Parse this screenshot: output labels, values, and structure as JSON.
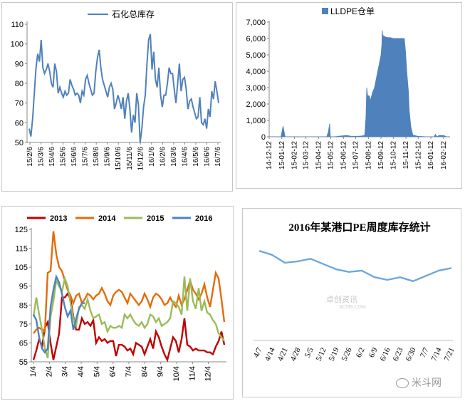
{
  "colors": {
    "series_blue": "#4f81bd",
    "line2013": "#c00000",
    "line2014": "#e46c0a",
    "line2015": "#9bbb59",
    "line2016": "#4f81bd",
    "line2016_port": "#6fa8dc"
  },
  "watermark": {
    "main": "卓创资讯",
    "sub": "SCI99.COM"
  },
  "footer_logo": "米斗网",
  "chart_data": [
    {
      "type": "line",
      "legend": [
        "石化总库存"
      ],
      "series": [
        {
          "name": "石化总库存",
          "values": [
            57,
            53,
            62,
            75,
            88,
            95,
            91,
            102,
            88,
            85,
            87,
            90,
            86,
            80,
            78,
            90,
            86,
            75,
            78,
            75,
            73,
            76,
            74,
            75,
            82,
            79,
            77,
            74,
            75,
            74,
            70,
            76,
            74,
            82,
            84,
            80,
            77,
            74,
            75,
            86,
            93,
            97,
            88,
            82,
            79,
            76,
            73,
            78,
            80,
            77,
            67,
            70,
            74,
            71,
            67,
            73,
            62,
            71,
            75,
            67,
            55,
            64,
            60,
            75,
            69,
            50,
            57,
            68,
            74,
            90,
            102,
            105,
            87,
            96,
            82,
            78,
            88,
            74,
            68,
            74,
            74,
            80,
            88,
            85,
            85,
            77,
            70,
            80,
            90,
            76,
            82,
            83,
            77,
            67,
            71,
            72,
            68,
            65,
            62,
            63,
            73,
            60,
            59,
            62,
            57,
            67,
            63,
            76,
            72,
            81,
            76,
            70
          ]
        }
      ],
      "x_tick_labels": [
        "15/2/6",
        "15/3/6",
        "15/4/6",
        "15/5/6",
        "15/6/6",
        "15/7/6",
        "15/8/6",
        "15/9/6",
        "15/10/6",
        "15/11/6",
        "15/12/6",
        "16/1/6",
        "16/2/6",
        "16/3/6",
        "16/4/6",
        "16/5/6",
        "16/6/6",
        "16/7/6"
      ],
      "y_ticks": [
        50,
        60,
        70,
        80,
        90,
        100,
        110
      ],
      "ylim": [
        50,
        110
      ],
      "grid": false
    },
    {
      "type": "area",
      "legend": [
        "LLDPE仓单"
      ],
      "series": [
        {
          "name": "LLDPE仓单",
          "x": [
            "2014-12-12",
            "2015-01-05",
            "2015-01-10",
            "2015-01-15",
            "2015-01-20",
            "2015-02-01",
            "2015-03-01",
            "2015-04-01",
            "2015-04-25",
            "2015-05-02",
            "2015-05-06",
            "2015-05-09",
            "2015-05-11",
            "2015-05-13",
            "2015-05-16",
            "2015-05-20",
            "2015-06-01",
            "2015-06-20",
            "2015-07-01",
            "2015-07-20",
            "2015-07-28",
            "2015-08-03",
            "2015-08-06",
            "2015-08-08",
            "2015-08-10",
            "2015-08-14",
            "2015-08-17",
            "2015-08-22",
            "2015-08-27",
            "2015-08-31",
            "2015-09-04",
            "2015-09-08",
            "2015-09-12",
            "2015-09-14",
            "2015-09-15",
            "2015-09-16",
            "2015-09-22",
            "2015-09-29",
            "2015-10-05",
            "2015-10-12",
            "2015-10-20",
            "2015-10-26",
            "2015-11-02",
            "2015-11-08",
            "2015-11-11",
            "2015-11-14",
            "2015-11-18",
            "2015-11-20",
            "2015-11-24",
            "2015-11-29",
            "2015-12-03",
            "2015-12-10",
            "2016-01-01",
            "2016-01-20",
            "2016-01-23",
            "2016-01-27",
            "2016-02-01",
            "2016-02-12",
            "2016-02-20",
            "2016-02-28"
          ],
          "values": [
            0,
            0,
            0,
            650,
            0,
            0,
            0,
            0,
            0,
            0,
            300,
            800,
            0,
            0,
            0,
            0,
            40,
            80,
            30,
            40,
            50,
            100,
            1200,
            3000,
            2500,
            2500,
            2200,
            2700,
            3000,
            3500,
            4000,
            4500,
            5000,
            5600,
            6500,
            6200,
            6100,
            6050,
            6050,
            6000,
            6000,
            6000,
            6000,
            6000,
            5200,
            4000,
            2800,
            1600,
            600,
            100,
            80,
            40,
            0,
            0,
            150,
            0,
            80,
            80,
            0,
            0
          ]
        }
      ],
      "x_tick_labels": [
        "14-12-12",
        "15-01-12",
        "15-02-12",
        "15-03-12",
        "15-04-12",
        "15-05-12",
        "15-06-12",
        "15-07-12",
        "15-08-12",
        "15-09-12",
        "15-10-12",
        "15-11-12",
        "15-12-12",
        "16-01-12",
        "16-02-12"
      ],
      "y_ticks": [
        0,
        1000,
        2000,
        3000,
        4000,
        5000,
        6000,
        7000
      ],
      "y_tick_labels": [
        "0",
        "1,000",
        "2,000",
        "3,000",
        "4,000",
        "5,000",
        "6,000",
        "7,000"
      ],
      "ylim": [
        0,
        7000
      ],
      "grid": false
    },
    {
      "type": "line",
      "legend": [
        "2013",
        "2014",
        "2015",
        "2016"
      ],
      "x_tick_labels": [
        "1/4",
        "2/4",
        "3/4",
        "4/4",
        "5/4",
        "6/4",
        "7/4",
        "8/4",
        "9/4",
        "10/4",
        "11/4",
        "12/4"
      ],
      "y_ticks": [
        55,
        65,
        75,
        85,
        95,
        105,
        115,
        125
      ],
      "ylim": [
        55,
        125
      ],
      "series": [
        {
          "name": "2013",
          "values": [
            56,
            61,
            67,
            63,
            73,
            76,
            65,
            56,
            63,
            70,
            89,
            89,
            91,
            88,
            79,
            72,
            72,
            78,
            75,
            76,
            74,
            77,
            65,
            68,
            66,
            67,
            65,
            66,
            66,
            58,
            64,
            64,
            63,
            61,
            62,
            59,
            65,
            64,
            63,
            59,
            63,
            67,
            62,
            71,
            68,
            63,
            59,
            56,
            62,
            68,
            66,
            60,
            67,
            78,
            64,
            63,
            61,
            62,
            61,
            61,
            61,
            60,
            60,
            59,
            63,
            66,
            71,
            64
          ]
        },
        {
          "name": "2014",
          "values": [
            70,
            72,
            73,
            72,
            71,
            102,
            103,
            124,
            112,
            105,
            103,
            98,
            93,
            90,
            86,
            90,
            91,
            86,
            88,
            91,
            90,
            88,
            90,
            91,
            94,
            91,
            87,
            85,
            90,
            92,
            93,
            92,
            89,
            86,
            91,
            89,
            87,
            85,
            87,
            91,
            88,
            84,
            89,
            91,
            90,
            88,
            85,
            86,
            89,
            86,
            84,
            90,
            85,
            88,
            93,
            98,
            93,
            91,
            88,
            91,
            96,
            89,
            84,
            93,
            102,
            99,
            88,
            76
          ]
        },
        {
          "name": "2015",
          "values": [
            79,
            89,
            80,
            72,
            62,
            57,
            79,
            87,
            98,
            95,
            92,
            99,
            95,
            86,
            78,
            74,
            84,
            85,
            83,
            88,
            82,
            78,
            79,
            80,
            75,
            76,
            71,
            74,
            73,
            73,
            74,
            73,
            80,
            78,
            80,
            77,
            75,
            74,
            76,
            73,
            75,
            80,
            79,
            76,
            78,
            74,
            75,
            76,
            78,
            87,
            86,
            84,
            80,
            100,
            82,
            99,
            87,
            83,
            94,
            82,
            87,
            81,
            80,
            77,
            75,
            70,
            68,
            66
          ]
        },
        {
          "name": "2016",
          "values": [
            80,
            77,
            68,
            62,
            60,
            62,
            84,
            93,
            100,
            97,
            91,
            84,
            79,
            82,
            72,
            78,
            83,
            86,
            86
          ]
        }
      ],
      "grid": false
    },
    {
      "type": "line",
      "title": "2016年某港口PE周度库存统计",
      "categories": [
        "4/7",
        "4/14",
        "4/21",
        "4/28",
        "5/5",
        "5/12",
        "5/19",
        "5/26",
        "6/2",
        "6/9",
        "6/16",
        "6/23",
        "6/30",
        "7/7",
        "7/14",
        "7/21"
      ],
      "series": [
        {
          "values": [
            13.8,
            13.5,
            12.9,
            13.0,
            13.2,
            12.8,
            12.4,
            12.2,
            12.3,
            11.8,
            11.6,
            11.8,
            11.5,
            11.9,
            12.3,
            12.5
          ]
        }
      ],
      "ylim": [
        7,
        15
      ],
      "grid": false
    }
  ]
}
